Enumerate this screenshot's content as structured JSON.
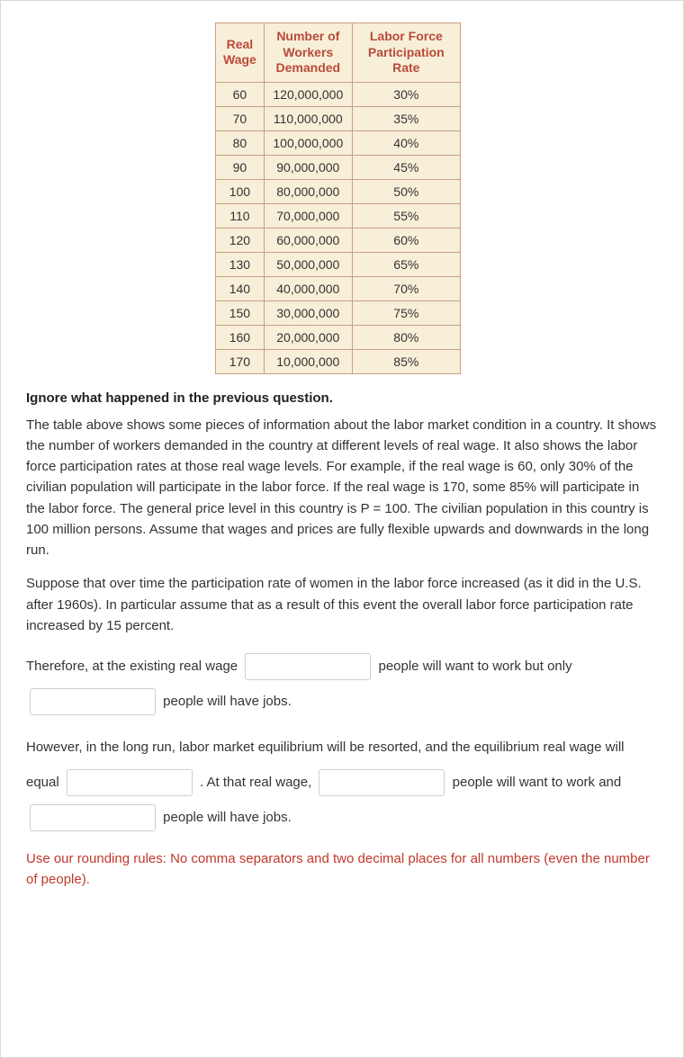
{
  "table": {
    "headers": {
      "wage": "Real Wage",
      "workers": "Number of Workers Demanded",
      "rate": "Labor Force Participation Rate"
    },
    "rows": [
      {
        "wage": "60",
        "workers": "120,000,000",
        "rate": "30%"
      },
      {
        "wage": "70",
        "workers": "110,000,000",
        "rate": "35%"
      },
      {
        "wage": "80",
        "workers": "100,000,000",
        "rate": "40%"
      },
      {
        "wage": "90",
        "workers": "90,000,000",
        "rate": "45%"
      },
      {
        "wage": "100",
        "workers": "80,000,000",
        "rate": "50%"
      },
      {
        "wage": "110",
        "workers": "70,000,000",
        "rate": "55%"
      },
      {
        "wage": "120",
        "workers": "60,000,000",
        "rate": "60%"
      },
      {
        "wage": "130",
        "workers": "50,000,000",
        "rate": "65%"
      },
      {
        "wage": "140",
        "workers": "40,000,000",
        "rate": "70%"
      },
      {
        "wage": "150",
        "workers": "30,000,000",
        "rate": "75%"
      },
      {
        "wage": "160",
        "workers": "20,000,000",
        "rate": "80%"
      },
      {
        "wage": "170",
        "workers": "10,000,000",
        "rate": "85%"
      }
    ],
    "style": {
      "header_bg": "#f8efd8",
      "header_color": "#b84b3a",
      "cell_bg": "#f8efd8",
      "cell_color": "#333333",
      "border_color": "#c99f85"
    }
  },
  "lines": {
    "ignore": "Ignore what happened in the previous question.",
    "para1": "The table above shows some pieces of information about the labor market condition in a country. It shows the number of workers demanded in the country at different levels of real wage. It also shows the labor force participation rates at those real wage levels. For example, if the real wage is 60, only 30% of the civilian population will participate in the labor force. If the real wage is 170, some 85% will participate in the labor force. The general price level in this country is P = 100. The civilian population in this country is 100 million persons. Assume that wages and prices are fully flexible upwards and downwards in the long run.",
    "para2": "Suppose that over time the participation rate of women in the labor force increased (as it did in the U.S. after 1960s). In particular assume that as a result of this event the overall labor force participation rate increased by 15 percent.",
    "fill1a": "Therefore, at the existing real wage",
    "fill1b": "people will want to work but only",
    "fill1c": "people will have jobs.",
    "fill2a": "However, in the long run, labor market equilibrium will be resorted, and the equilibrium real wage will equal",
    "fill2b": ". At that real wage,",
    "fill2c": "people will want to work and",
    "fill2d": "people will have jobs.",
    "note": "Use our rounding rules: No comma separators and two decimal places for all numbers (even the number of people)."
  },
  "inputs": {
    "a1_value": "",
    "a2_value": "",
    "a3_value": "",
    "a4_value": "",
    "a5_value": ""
  },
  "colors": {
    "text": "#333333",
    "note": "#c0392b",
    "border": "#d8d8d8",
    "input_border": "#cfcfcf",
    "background": "#ffffff"
  }
}
